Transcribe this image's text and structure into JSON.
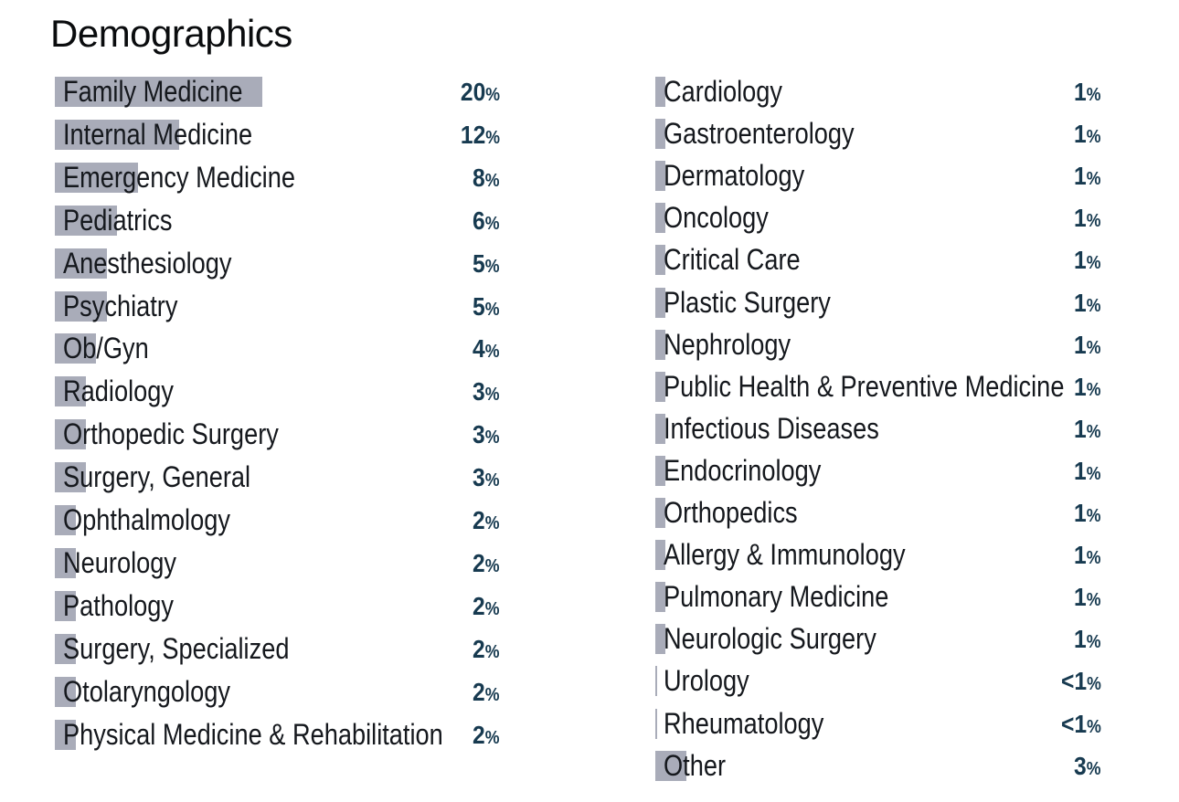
{
  "colors": {
    "background": "#ffffff",
    "bar": "#a9acb9",
    "label_text": "#15181d",
    "value_text": "#173a50",
    "title_text": "#0a0c0e"
  },
  "chart_data": {
    "type": "bar",
    "orientation": "horizontal",
    "title": "Demographics",
    "unit": "%",
    "legend": null,
    "grid": false,
    "columns": [
      {
        "items": [
          {
            "label": "Family Medicine",
            "value": 20,
            "display": "20%"
          },
          {
            "label": "Internal Medicine",
            "value": 12,
            "display": "12%"
          },
          {
            "label": "Emergency Medicine",
            "value": 8,
            "display": "8%"
          },
          {
            "label": "Pediatrics",
            "value": 6,
            "display": "6%"
          },
          {
            "label": "Anesthesiology",
            "value": 5,
            "display": "5%"
          },
          {
            "label": "Psychiatry",
            "value": 5,
            "display": "5%"
          },
          {
            "label": "Ob/Gyn",
            "value": 4,
            "display": "4%"
          },
          {
            "label": "Radiology",
            "value": 3,
            "display": "3%"
          },
          {
            "label": "Orthopedic Surgery",
            "value": 3,
            "display": "3%"
          },
          {
            "label": "Surgery, General",
            "value": 3,
            "display": "3%"
          },
          {
            "label": "Ophthalmology",
            "value": 2,
            "display": "2%"
          },
          {
            "label": "Neurology",
            "value": 2,
            "display": "2%"
          },
          {
            "label": "Pathology",
            "value": 2,
            "display": "2%"
          },
          {
            "label": "Surgery, Specialized",
            "value": 2,
            "display": "2%"
          },
          {
            "label": "Otolaryngology",
            "value": 2,
            "display": "2%"
          },
          {
            "label": "Physical Medicine & Rehabilitation",
            "value": 2,
            "display": "2%"
          }
        ]
      },
      {
        "items": [
          {
            "label": "Cardiology",
            "value": 1,
            "display": "1%"
          },
          {
            "label": "Gastroenterology",
            "value": 1,
            "display": "1%"
          },
          {
            "label": "Dermatology",
            "value": 1,
            "display": "1%"
          },
          {
            "label": "Oncology",
            "value": 1,
            "display": "1%"
          },
          {
            "label": "Critical Care",
            "value": 1,
            "display": "1%"
          },
          {
            "label": "Plastic Surgery",
            "value": 1,
            "display": "1%"
          },
          {
            "label": "Nephrology",
            "value": 1,
            "display": "1%"
          },
          {
            "label": "Public Health & Preventive Medicine",
            "value": 1,
            "display": "1%"
          },
          {
            "label": "Infectious Diseases",
            "value": 1,
            "display": "1%"
          },
          {
            "label": "Endocrinology",
            "value": 1,
            "display": "1%"
          },
          {
            "label": "Orthopedics",
            "value": 1,
            "display": "1%"
          },
          {
            "label": "Allergy & Immunology",
            "value": 1,
            "display": "1%"
          },
          {
            "label": "Pulmonary Medicine",
            "value": 1,
            "display": "1%"
          },
          {
            "label": "Neurologic Surgery",
            "value": 1,
            "display": "1%"
          },
          {
            "label": "Urology",
            "value": 0.2,
            "display": "<1%"
          },
          {
            "label": "Rheumatology",
            "value": 0.2,
            "display": "<1%"
          },
          {
            "label": "Other",
            "value": 3,
            "display": "3%"
          }
        ]
      }
    ]
  }
}
